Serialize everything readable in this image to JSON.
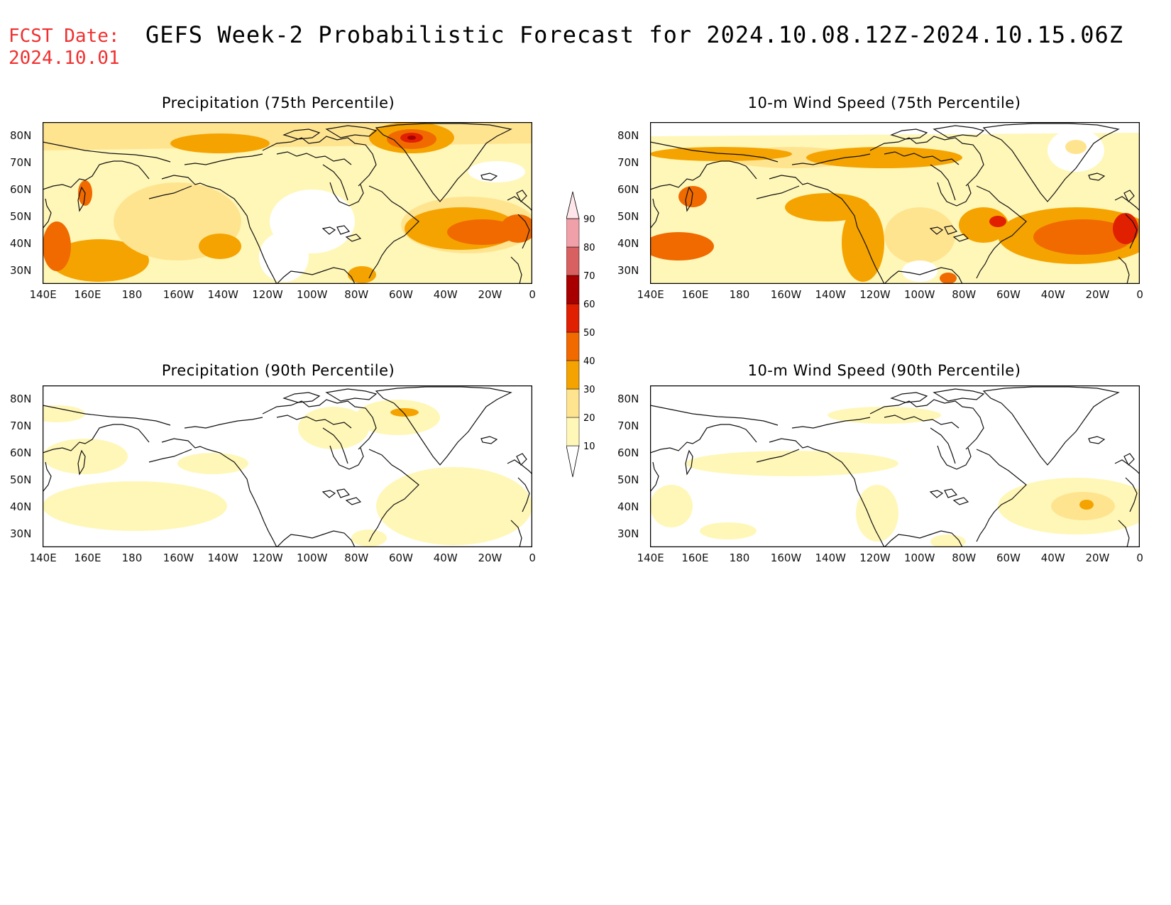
{
  "header": {
    "fcst_label": "FCST Date:",
    "fcst_date": "2024.10.01",
    "title": "GEFS Week-2 Probabilistic Forecast for 2024.10.08.12Z-2024.10.15.06Z"
  },
  "axes": {
    "lon_labels": [
      "140E",
      "160E",
      "180",
      "160W",
      "140W",
      "120W",
      "100W",
      "80W",
      "60W",
      "40W",
      "20W",
      "0"
    ],
    "lat_labels": [
      "80N",
      "70N",
      "60N",
      "50N",
      "40N",
      " 30N"
    ]
  },
  "panels": [
    {
      "id": "precip75",
      "title": "Precipitation (75th Percentile)"
    },
    {
      "id": "wind75",
      "title": "10-m Wind Speed (75th Percentile)"
    },
    {
      "id": "precip90",
      "title": "Precipitation (90th Percentile)"
    },
    {
      "id": "wind90",
      "title": "10-m Wind Speed (90th Percentile)"
    }
  ],
  "colorbar": {
    "levels": [
      "10",
      "20",
      "30",
      "40",
      "50",
      "60",
      "70",
      "80",
      "90"
    ],
    "colors": [
      "#fff7b8",
      "#ffe490",
      "#f5a300",
      "#f06a00",
      "#e02000",
      "#a80000",
      "#d86060",
      "#f0a0a8",
      "#ffe6ea"
    ]
  }
}
